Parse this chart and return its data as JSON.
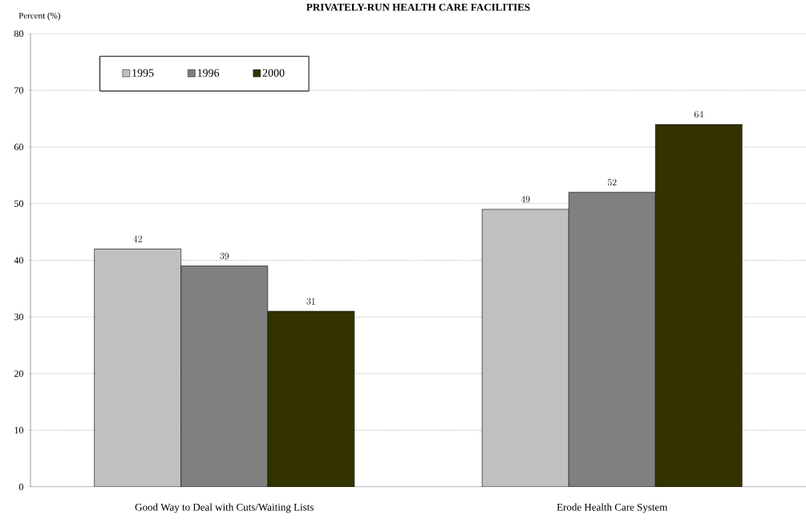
{
  "chart_data": {
    "type": "bar",
    "title": "PRIVATELY-RUN HEALTH CARE FACILITIES",
    "ylabel": "Percent (%)",
    "categories": [
      "Good Way to Deal with Cuts/Waiting Lists",
      "Erode Health Care System"
    ],
    "series": [
      {
        "name": "1995",
        "color": "#c0c0c0",
        "values": [
          42,
          49
        ]
      },
      {
        "name": "1996",
        "color": "#808080",
        "values": [
          39,
          52
        ]
      },
      {
        "name": "2000",
        "color": "#333300",
        "values": [
          31,
          64
        ]
      }
    ],
    "ylim": [
      0,
      80
    ],
    "yticks": [
      0,
      10,
      20,
      30,
      40,
      50,
      60,
      70,
      80
    ],
    "grid": "y",
    "legend": "top left",
    "data_labels": true
  }
}
